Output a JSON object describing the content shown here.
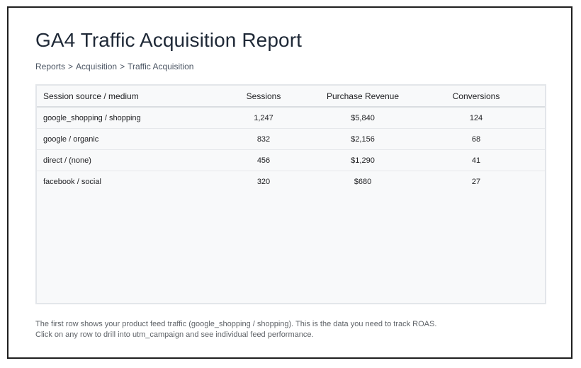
{
  "report": {
    "title": "GA4 Traffic Acquisition Report"
  },
  "breadcrumb": [
    "Reports",
    ">",
    "Acquisition",
    ">",
    "Traffic Acquisition"
  ],
  "table": {
    "columns": [
      "Session source / medium",
      "Sessions",
      "Purchase Revenue",
      "Conversions"
    ],
    "rows": [
      [
        "google_shopping / shopping",
        "1,247",
        "$5,840",
        "124"
      ],
      [
        "google / organic",
        "832",
        "$2,156",
        "68"
      ],
      [
        "direct / (none)",
        "456",
        "$1,290",
        "41"
      ],
      [
        "facebook / social",
        "320",
        "$680",
        "27"
      ]
    ]
  },
  "footer": {
    "line1": "The first row shows your product feed traffic (google_shopping / shopping). This is the data you need to track ROAS.",
    "line2": "Click on any row to drill into utm_campaign and see individual feed performance."
  }
}
